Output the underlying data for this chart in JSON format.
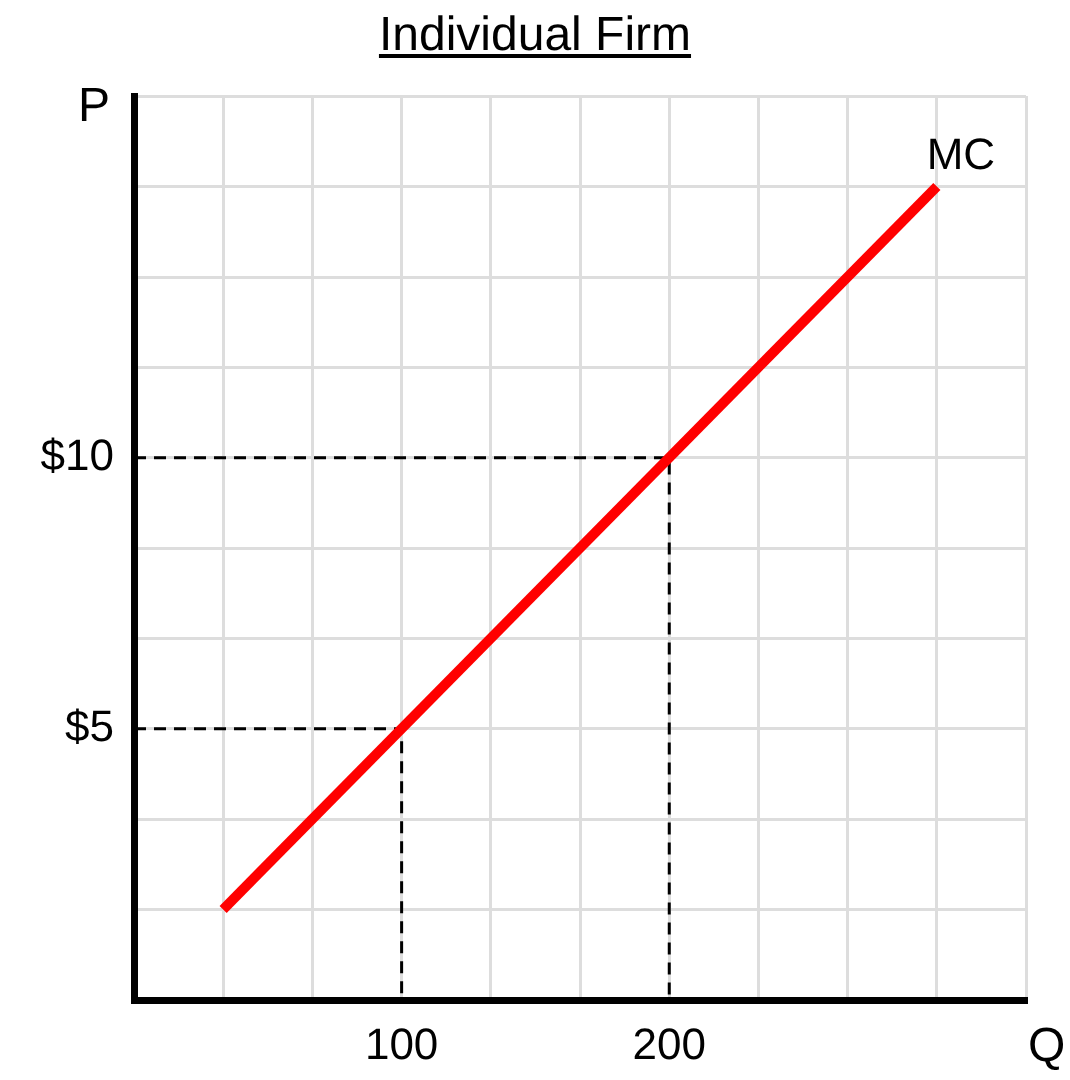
{
  "chart_data": {
    "type": "line",
    "title": "Individual Firm",
    "xlabel": "Q",
    "ylabel": "P",
    "xlim": [
      0,
      333.3
    ],
    "ylim": [
      0,
      16.67
    ],
    "xticks": [
      {
        "value": 33.3,
        "label": null
      },
      {
        "value": 66.7,
        "label": null
      },
      100,
      {
        "value": 133.3,
        "label": null
      },
      {
        "value": 166.7,
        "label": null
      },
      200,
      {
        "value": 233.3,
        "label": null
      },
      {
        "value": 266.7,
        "label": null
      },
      {
        "value": 300,
        "label": null
      },
      {
        "value": 333.3,
        "label": null
      }
    ],
    "yticks": [
      {
        "value": 1.67,
        "label": null
      },
      {
        "value": 3.33,
        "label": null
      },
      {
        "value": 5,
        "label": "$5"
      },
      {
        "value": 6.67,
        "label": null
      },
      {
        "value": 8.33,
        "label": null
      },
      {
        "value": 10,
        "label": "$10"
      },
      {
        "value": 11.67,
        "label": null
      },
      {
        "value": 13.33,
        "label": null
      },
      {
        "value": 15,
        "label": null
      },
      {
        "value": 16.67,
        "label": null
      }
    ],
    "grid": true,
    "legend": false,
    "marker": "none",
    "series": [
      {
        "name": "MC",
        "color": "#ff0000",
        "x": [
          33.3,
          300
        ],
        "values": [
          1.67,
          15
        ]
      },
      {
        "color": "#000000",
        "line_style": "dashed",
        "x": [
          0,
          100,
          100
        ],
        "values": [
          5,
          5,
          0
        ]
      },
      {
        "color": "#000000",
        "line_style": "dashed",
        "x": [
          0,
          200,
          200
        ],
        "values": [
          10,
          10,
          0
        ]
      }
    ]
  }
}
